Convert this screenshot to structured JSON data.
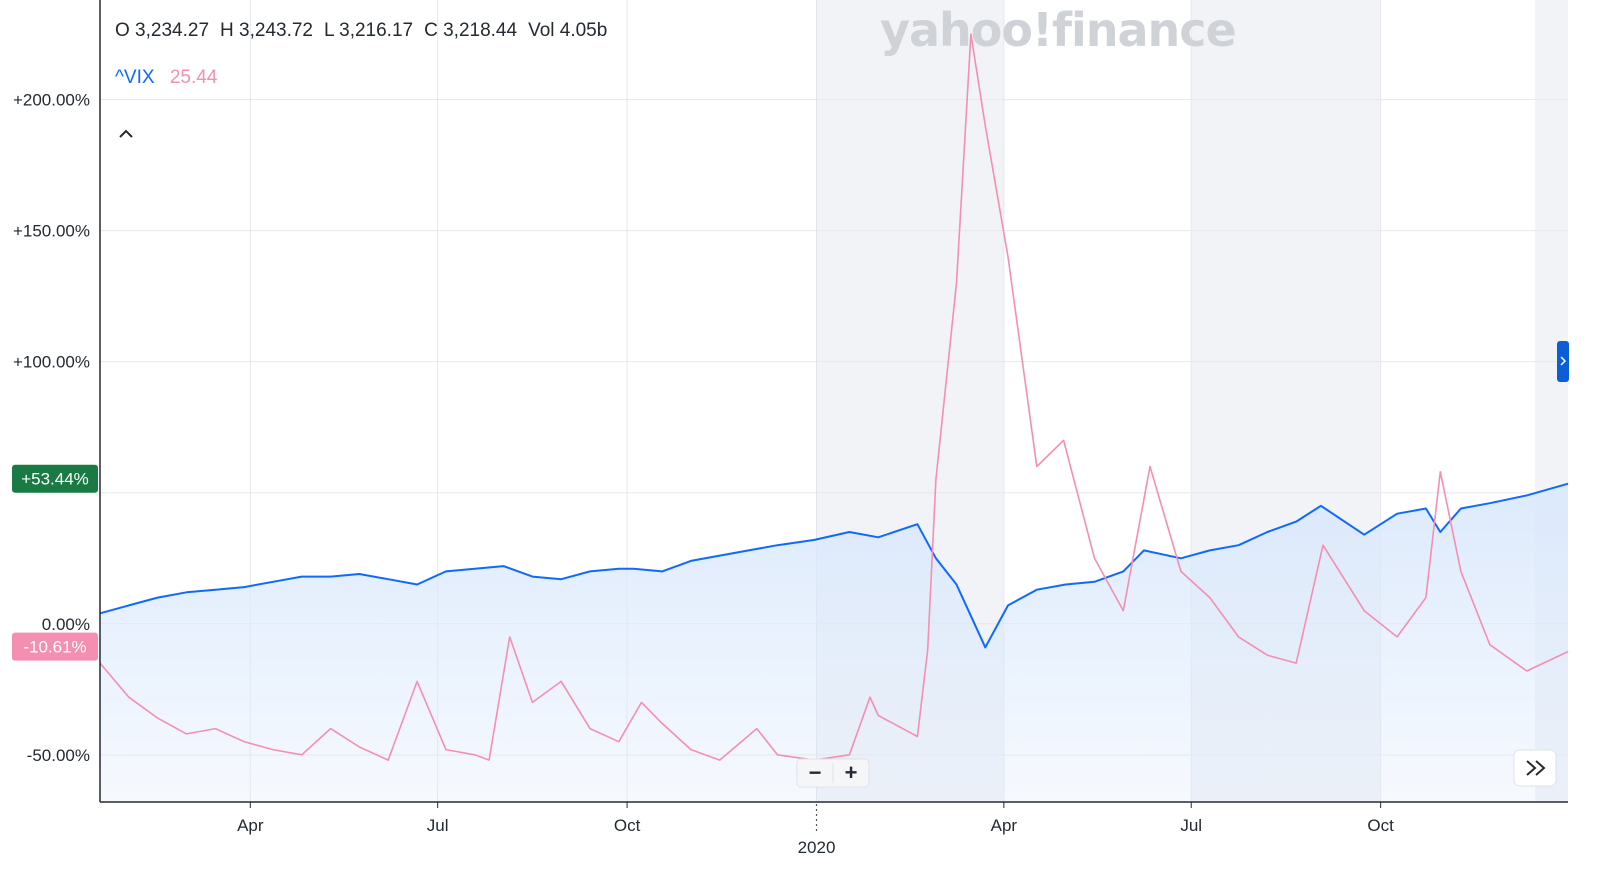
{
  "header": {
    "ohlc": [
      {
        "label": "O",
        "value": "3,234.27"
      },
      {
        "label": "H",
        "value": "3,243.72"
      },
      {
        "label": "L",
        "value": "3,216.17"
      },
      {
        "label": "C",
        "value": "3,218.44"
      },
      {
        "label": "Vol",
        "value": "4.05b"
      }
    ],
    "comparison_symbol": "^VIX",
    "comparison_value": "25.44",
    "watermark": "yahoo!finance"
  },
  "colors": {
    "primary_line": "#0f69ff",
    "comparison_line": "#f48fb1",
    "area_fill": "#dbe9fc",
    "badge_primary": "#1a7a44",
    "badge_comparison": "#f48fb1",
    "grid": "#e6e8eb",
    "shade": "#f1f3f7",
    "handle": "#0b5fd6"
  },
  "badges": {
    "primary_change": "+53.44%",
    "comparison_change": "-10.61%"
  },
  "controls": {
    "zoom_out": "−",
    "zoom_in": "+",
    "collapse_icon": "chevron-up-icon",
    "scroll_icon": "double-chevron-right-icon"
  },
  "chart_data": {
    "type": "line",
    "x_axis": {
      "tick_labels": [
        "Apr",
        "Jul",
        "Oct",
        "Apr",
        "Jul",
        "Oct"
      ],
      "year_label": "2020",
      "range": [
        "2019-01-18",
        "2020-12-31"
      ]
    },
    "y_axis": {
      "tick_labels": [
        "+200.00%",
        "+150.00%",
        "+100.00%",
        "0.00%",
        "-50.00%"
      ],
      "ticks": [
        200,
        150,
        100,
        50,
        0,
        -50
      ],
      "range": [
        -68,
        238
      ],
      "unit": "%"
    },
    "grid": true,
    "series": [
      {
        "key": "primary",
        "style": "area",
        "points": [
          [
            "2019-01-18",
            4
          ],
          [
            "2019-02-01",
            7
          ],
          [
            "2019-02-15",
            10
          ],
          [
            "2019-03-01",
            12
          ],
          [
            "2019-03-15",
            13
          ],
          [
            "2019-03-29",
            14
          ],
          [
            "2019-04-12",
            16
          ],
          [
            "2019-04-26",
            18
          ],
          [
            "2019-05-10",
            18
          ],
          [
            "2019-05-24",
            19
          ],
          [
            "2019-06-07",
            17
          ],
          [
            "2019-06-21",
            15
          ],
          [
            "2019-07-05",
            20
          ],
          [
            "2019-07-19",
            21
          ],
          [
            "2019-08-02",
            22
          ],
          [
            "2019-08-16",
            18
          ],
          [
            "2019-08-30",
            17
          ],
          [
            "2019-09-13",
            20
          ],
          [
            "2019-09-27",
            21
          ],
          [
            "2019-10-04",
            21
          ],
          [
            "2019-10-18",
            20
          ],
          [
            "2019-11-01",
            24
          ],
          [
            "2019-11-15",
            26
          ],
          [
            "2019-11-29",
            28
          ],
          [
            "2019-12-13",
            30
          ],
          [
            "2019-12-31",
            32
          ],
          [
            "2020-01-17",
            35
          ],
          [
            "2020-01-31",
            33
          ],
          [
            "2020-02-19",
            38
          ],
          [
            "2020-02-28",
            25
          ],
          [
            "2020-03-09",
            15
          ],
          [
            "2020-03-16",
            3
          ],
          [
            "2020-03-23",
            -9
          ],
          [
            "2020-04-03",
            7
          ],
          [
            "2020-04-17",
            13
          ],
          [
            "2020-05-01",
            15
          ],
          [
            "2020-05-15",
            16
          ],
          [
            "2020-05-29",
            20
          ],
          [
            "2020-06-08",
            28
          ],
          [
            "2020-06-26",
            25
          ],
          [
            "2020-07-10",
            28
          ],
          [
            "2020-07-24",
            30
          ],
          [
            "2020-08-07",
            35
          ],
          [
            "2020-08-21",
            39
          ],
          [
            "2020-09-02",
            45
          ],
          [
            "2020-09-23",
            34
          ],
          [
            "2020-10-09",
            42
          ],
          [
            "2020-10-23",
            44
          ],
          [
            "2020-10-30",
            35
          ],
          [
            "2020-11-09",
            44
          ],
          [
            "2020-11-23",
            46
          ],
          [
            "2020-12-11",
            49
          ],
          [
            "2020-12-31",
            53.44
          ]
        ]
      },
      {
        "key": "comparison",
        "name": "^VIX",
        "style": "line",
        "points": [
          [
            "2019-01-18",
            -15
          ],
          [
            "2019-02-01",
            -28
          ],
          [
            "2019-02-15",
            -36
          ],
          [
            "2019-03-01",
            -42
          ],
          [
            "2019-03-15",
            -40
          ],
          [
            "2019-03-29",
            -45
          ],
          [
            "2019-04-12",
            -48
          ],
          [
            "2019-04-26",
            -50
          ],
          [
            "2019-05-10",
            -40
          ],
          [
            "2019-05-24",
            -47
          ],
          [
            "2019-06-07",
            -52
          ],
          [
            "2019-06-21",
            -22
          ],
          [
            "2019-07-05",
            -48
          ],
          [
            "2019-07-19",
            -50
          ],
          [
            "2019-07-26",
            -52
          ],
          [
            "2019-08-05",
            -5
          ],
          [
            "2019-08-16",
            -30
          ],
          [
            "2019-08-30",
            -22
          ],
          [
            "2019-09-13",
            -40
          ],
          [
            "2019-09-27",
            -45
          ],
          [
            "2019-10-08",
            -30
          ],
          [
            "2019-10-18",
            -38
          ],
          [
            "2019-11-01",
            -48
          ],
          [
            "2019-11-15",
            -52
          ],
          [
            "2019-12-03",
            -40
          ],
          [
            "2019-12-13",
            -50
          ],
          [
            "2019-12-31",
            -52
          ],
          [
            "2020-01-17",
            -50
          ],
          [
            "2020-01-27",
            -28
          ],
          [
            "2020-01-31",
            -35
          ],
          [
            "2020-02-19",
            -43
          ],
          [
            "2020-02-24",
            -10
          ],
          [
            "2020-02-28",
            55
          ],
          [
            "2020-03-09",
            130
          ],
          [
            "2020-03-16",
            225
          ],
          [
            "2020-03-23",
            190
          ],
          [
            "2020-04-03",
            140
          ],
          [
            "2020-04-17",
            60
          ],
          [
            "2020-04-30",
            70
          ],
          [
            "2020-05-15",
            25
          ],
          [
            "2020-05-29",
            5
          ],
          [
            "2020-06-11",
            60
          ],
          [
            "2020-06-26",
            20
          ],
          [
            "2020-07-10",
            10
          ],
          [
            "2020-07-24",
            -5
          ],
          [
            "2020-08-07",
            -12
          ],
          [
            "2020-08-21",
            -15
          ],
          [
            "2020-09-03",
            30
          ],
          [
            "2020-09-23",
            5
          ],
          [
            "2020-10-09",
            -5
          ],
          [
            "2020-10-23",
            10
          ],
          [
            "2020-10-30",
            58
          ],
          [
            "2020-11-09",
            20
          ],
          [
            "2020-11-23",
            -8
          ],
          [
            "2020-12-11",
            -18
          ],
          [
            "2020-12-31",
            -10.61
          ]
        ]
      }
    ]
  }
}
